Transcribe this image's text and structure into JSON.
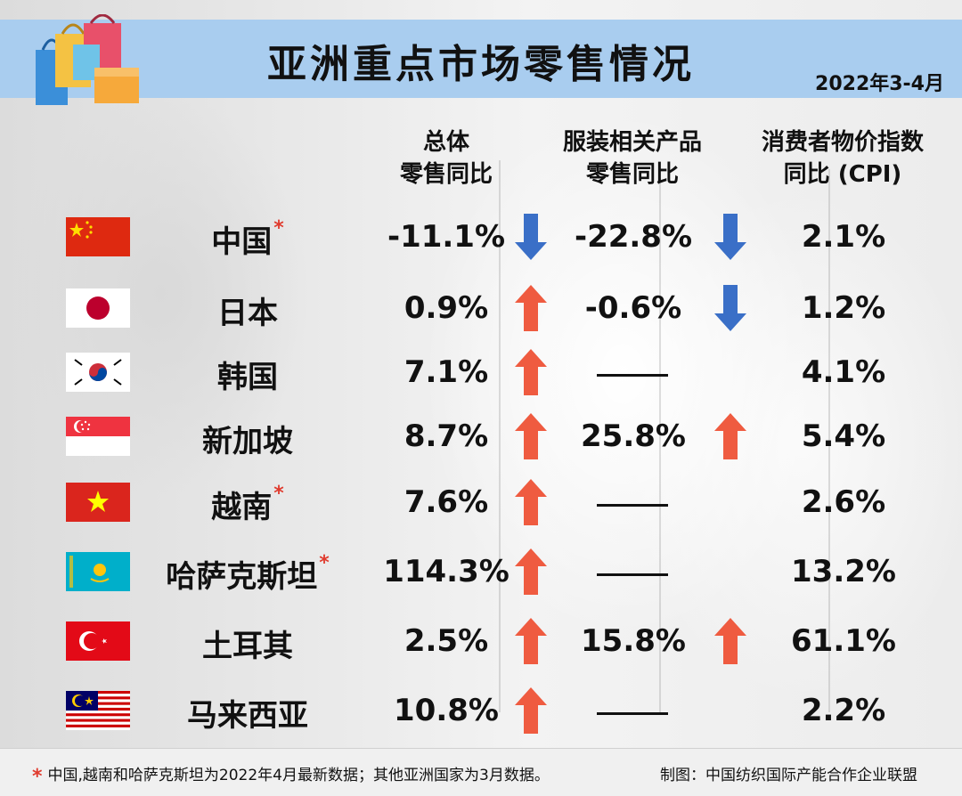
{
  "header": {
    "title": "亚洲重点市场零售情况",
    "date": "2022年3-4月"
  },
  "columns": {
    "total": [
      "总体",
      "零售同比"
    ],
    "apparel": [
      "服装相关产品",
      "零售同比"
    ],
    "cpi": [
      "消费者物价指数",
      "同比 (CPI)"
    ]
  },
  "rows": [
    {
      "country": "中国",
      "star": "*",
      "total": "-11.1%",
      "total_dir": "down",
      "apparel": "-22.8%",
      "apparel_dir": "down",
      "cpi": "2.1%",
      "flag": "china-flag"
    },
    {
      "country": "日本",
      "star": "",
      "total": "0.9%",
      "total_dir": "up",
      "apparel": "-0.6%",
      "apparel_dir": "down",
      "cpi": "1.2%",
      "flag": "japan-flag"
    },
    {
      "country": "韩国",
      "star": "",
      "total": "7.1%",
      "total_dir": "up",
      "apparel": "——",
      "apparel_dir": "",
      "cpi": "4.1%",
      "flag": "korea-flag"
    },
    {
      "country": "新加坡",
      "star": "",
      "total": "8.7%",
      "total_dir": "up",
      "apparel": "25.8%",
      "apparel_dir": "up",
      "cpi": "5.4%",
      "flag": "singapore-flag"
    },
    {
      "country": "越南",
      "star": "*",
      "total": "7.6%",
      "total_dir": "up",
      "apparel": "——",
      "apparel_dir": "",
      "cpi": "2.6%",
      "flag": "vietnam-flag"
    },
    {
      "country": "哈萨克斯坦",
      "star": "*",
      "total": "114.3%",
      "total_dir": "up",
      "apparel": "——",
      "apparel_dir": "",
      "cpi": "13.2%",
      "flag": "kazakhstan-flag"
    },
    {
      "country": "土耳其",
      "star": "",
      "total": "2.5%",
      "total_dir": "up",
      "apparel": "15.8%",
      "apparel_dir": "up",
      "cpi": "61.1%",
      "flag": "turkey-flag"
    },
    {
      "country": "马来西亚",
      "star": "",
      "total": "10.8%",
      "total_dir": "up",
      "apparel": "——",
      "apparel_dir": "",
      "cpi": "2.2%",
      "flag": "malaysia-flag"
    }
  ],
  "colors": {
    "header_bg": "#a9cdef",
    "up": "#ef5b40",
    "down": "#3a6fc7",
    "star": "#e03b2e"
  },
  "footer": {
    "note": "中国,越南和哈萨克斯坦为2022年4月最新数据；其他亚洲国家为3月数据。",
    "note_star": "*",
    "source": "制图：中国纺织国际产能合作企业联盟"
  }
}
